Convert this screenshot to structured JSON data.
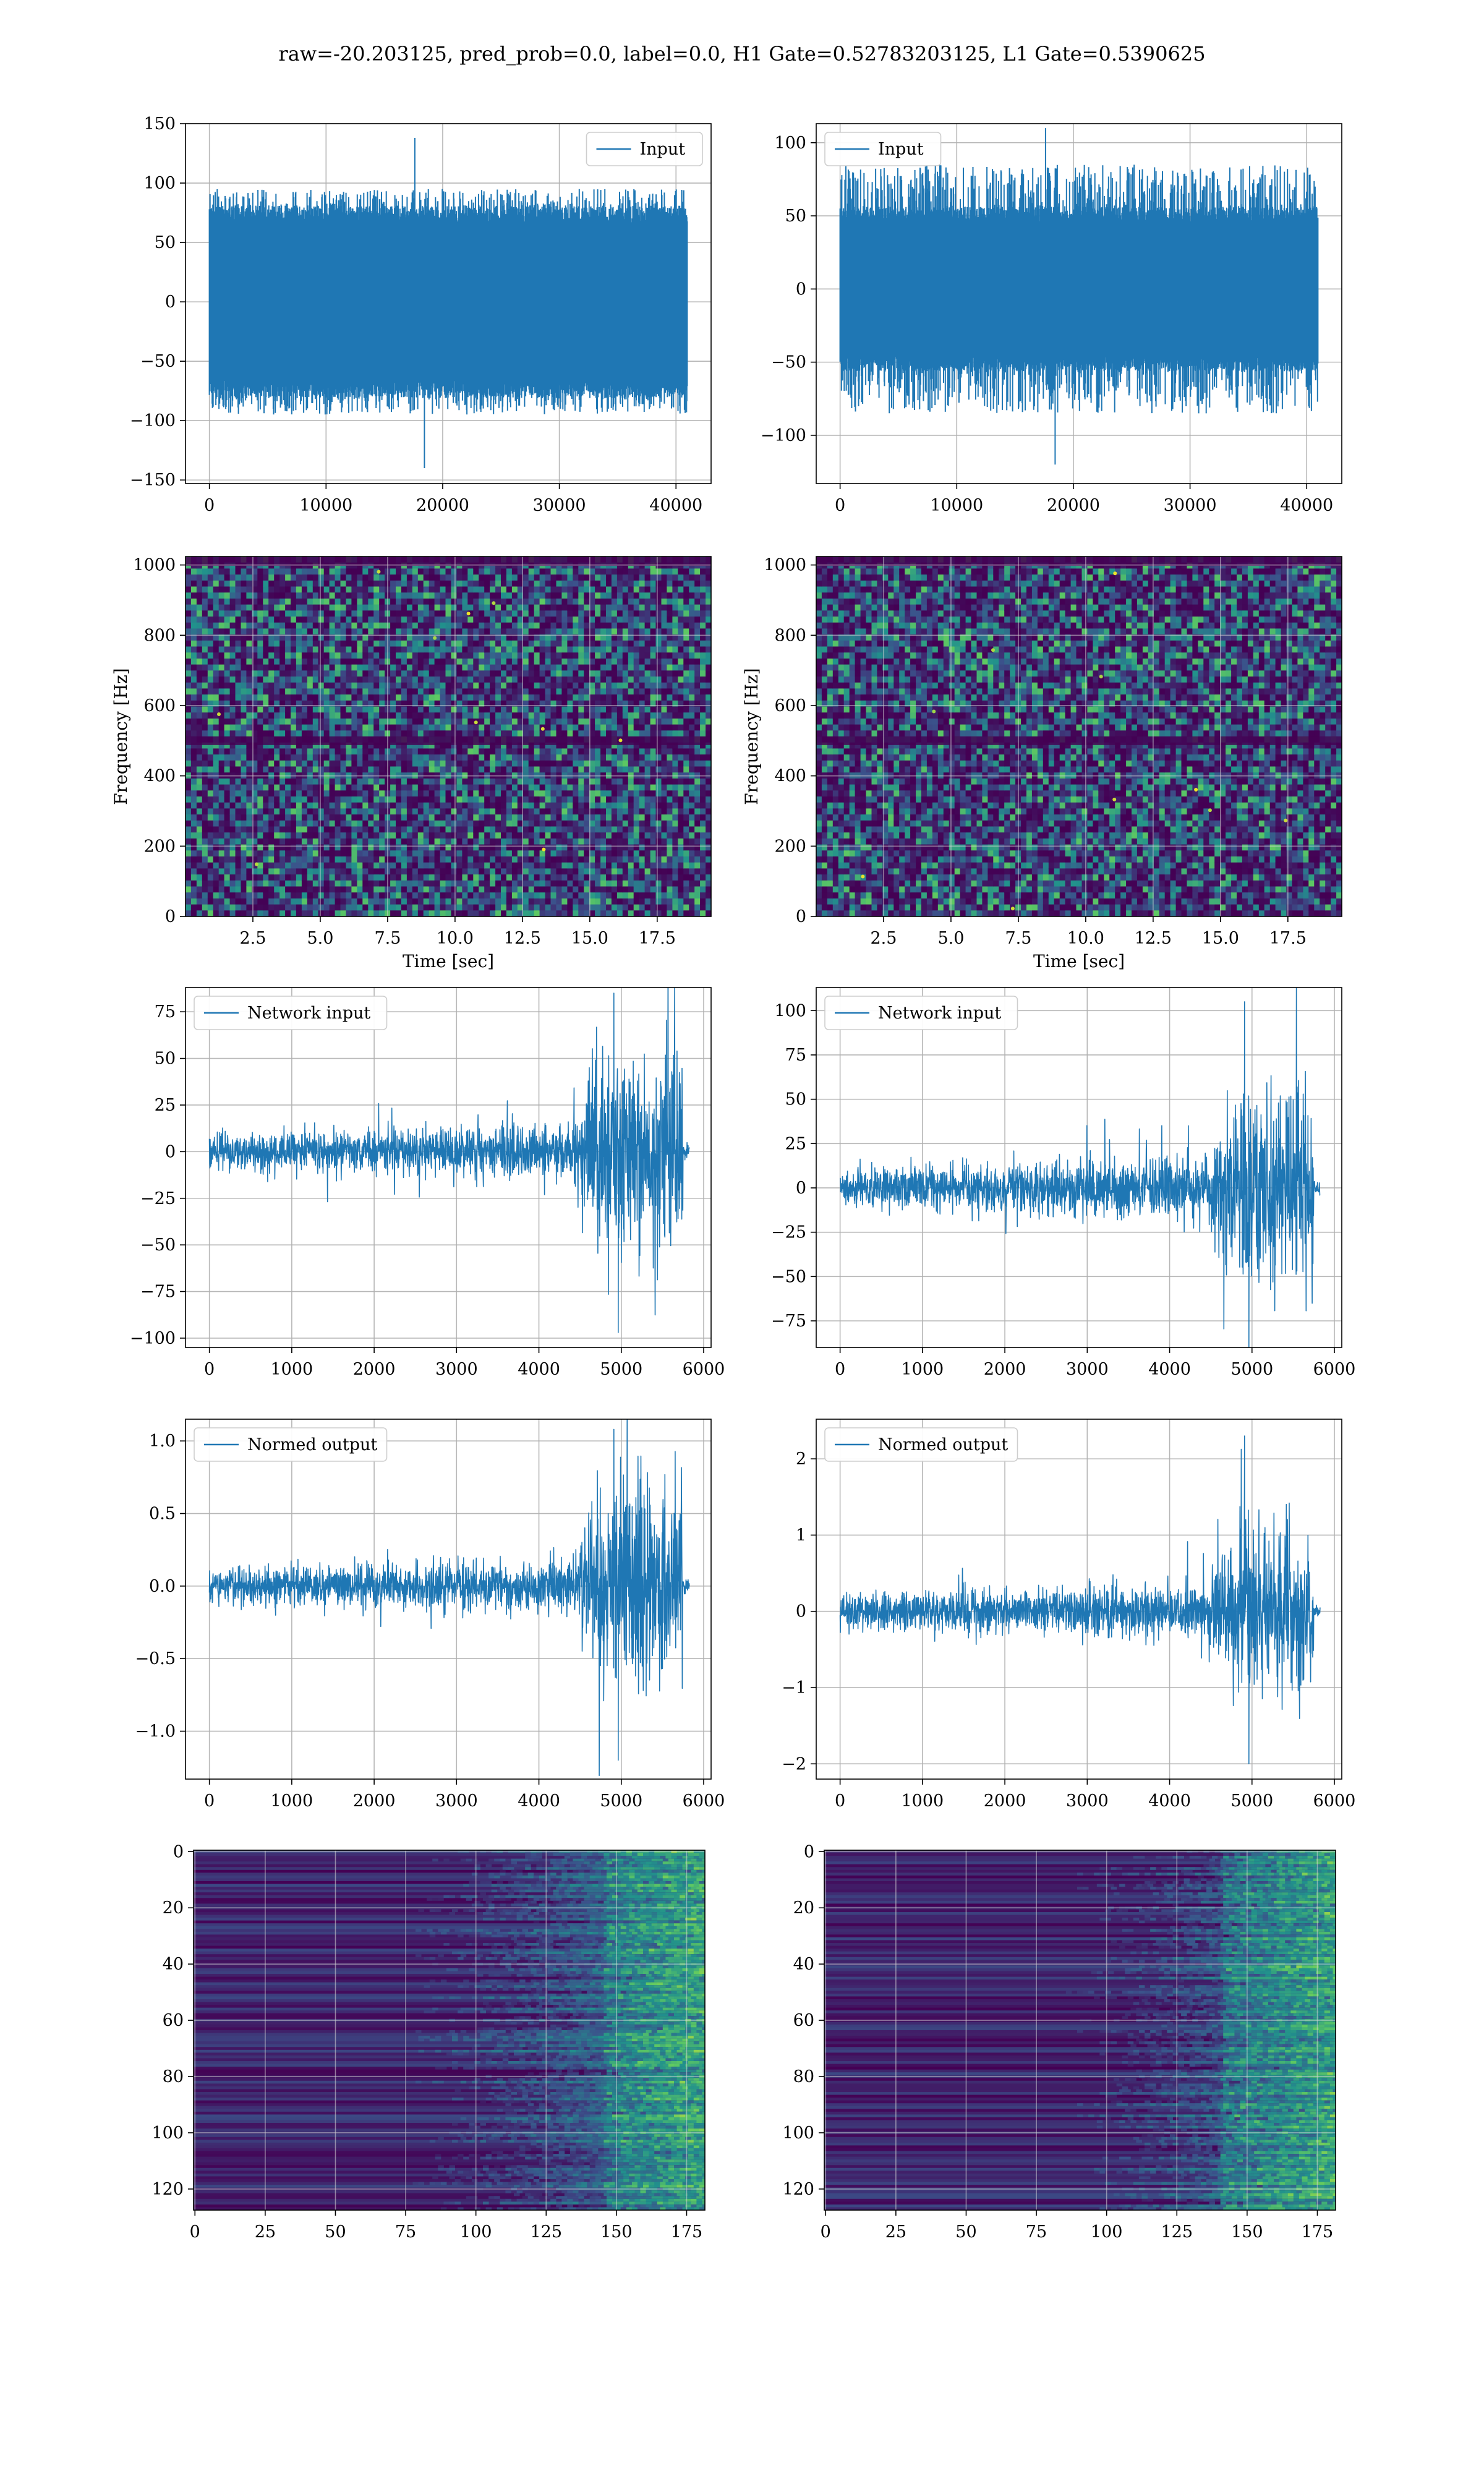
{
  "suptitle": "raw=-20.203125, pred_prob=0.0, label=0.0, H1 Gate=0.52783203125, L1 Gate=0.5390625",
  "colors": {
    "line": "#1f77b4",
    "grid": "#b0b0b0",
    "viridis_bg": "#440154"
  },
  "chart_data": [
    {
      "id": "input-h1",
      "type": "line",
      "title": "",
      "xlabel": "",
      "ylabel": "",
      "xlim": [
        -2048,
        43008
      ],
      "ylim": [
        -153,
        150
      ],
      "xticks": [
        0,
        10000,
        20000,
        30000,
        40000
      ],
      "yticks": [
        -150,
        -100,
        -50,
        0,
        50,
        100,
        150
      ],
      "legend": {
        "position": "upper right"
      },
      "series": [
        {
          "name": "Input",
          "signal": "noise",
          "x": [
            0,
            40960
          ],
          "envelope": {
            "core": 65,
            "peak_max": 138,
            "peak_min": -140,
            "typical_spike": 95
          }
        }
      ]
    },
    {
      "id": "input-l1",
      "type": "line",
      "title": "",
      "xlabel": "",
      "ylabel": "",
      "xlim": [
        -2048,
        43008
      ],
      "ylim": [
        -133,
        113
      ],
      "xticks": [
        0,
        10000,
        20000,
        30000,
        40000
      ],
      "yticks": [
        -100,
        -50,
        0,
        50,
        100
      ],
      "legend": {
        "position": "upper left"
      },
      "series": [
        {
          "name": "Input",
          "signal": "noise",
          "x": [
            0,
            40960
          ],
          "envelope": {
            "core": 45,
            "peak_max": 110,
            "peak_min": -120,
            "typical_spike": 85
          }
        }
      ]
    },
    {
      "id": "spectrogram-h1",
      "type": "heatmap",
      "colormap": "viridis",
      "xlabel": "Time [sec]",
      "ylabel": "Frequency [Hz]",
      "xlim": [
        0,
        19.5
      ],
      "ylim": [
        0,
        1024
      ],
      "xticks": [
        2.5,
        5.0,
        7.5,
        10.0,
        12.5,
        15.0,
        17.5
      ],
      "yticks": [
        0,
        200,
        400,
        600,
        800,
        1000
      ],
      "xtick_labels": [
        "2.5",
        "5.0",
        "7.5",
        "10.0",
        "12.5",
        "15.0",
        "17.5"
      ],
      "dark_bands_hz": [
        500,
        1010
      ]
    },
    {
      "id": "spectrogram-l1",
      "type": "heatmap",
      "colormap": "viridis",
      "xlabel": "Time [sec]",
      "ylabel": "Frequency [Hz]",
      "xlim": [
        0,
        19.5
      ],
      "ylim": [
        0,
        1024
      ],
      "xticks": [
        2.5,
        5.0,
        7.5,
        10.0,
        12.5,
        15.0,
        17.5
      ],
      "yticks": [
        0,
        200,
        400,
        600,
        800,
        1000
      ],
      "xtick_labels": [
        "2.5",
        "5.0",
        "7.5",
        "10.0",
        "12.5",
        "15.0",
        "17.5"
      ],
      "dark_bands_hz": [
        500,
        1010
      ]
    },
    {
      "id": "network-input-h1",
      "type": "line",
      "xlabel": "",
      "ylabel": "",
      "xlim": [
        -290,
        6090
      ],
      "ylim": [
        -105,
        88
      ],
      "xticks": [
        0,
        1000,
        2000,
        3000,
        4000,
        5000,
        6000
      ],
      "yticks": [
        -100,
        -75,
        -50,
        -25,
        0,
        25,
        50,
        75
      ],
      "legend": {
        "position": "upper left"
      },
      "series": [
        {
          "name": "Network input",
          "signal": "chirp",
          "segments": [
            {
              "x": [
                0,
                4500
              ],
              "amp_start": 9,
              "amp_end": 14
            },
            {
              "x": [
                4500,
                4700
              ],
              "amp_start": 30,
              "amp_end": 45
            },
            {
              "x": [
                4700,
                5750
              ],
              "amp_start": 50,
              "amp_end": 55
            },
            {
              "x": [
                5750,
                5830
              ],
              "amp_start": 4,
              "amp_end": 4
            }
          ],
          "peak_max": 85,
          "peak_min": -97
        }
      ]
    },
    {
      "id": "network-input-l1",
      "type": "line",
      "xlabel": "",
      "ylabel": "",
      "xlim": [
        -290,
        6090
      ],
      "ylim": [
        -90,
        113
      ],
      "xticks": [
        0,
        1000,
        2000,
        3000,
        4000,
        5000,
        6000
      ],
      "yticks": [
        -75,
        -50,
        -25,
        0,
        25,
        50,
        75,
        100
      ],
      "legend": {
        "position": "upper left"
      },
      "series": [
        {
          "name": "Network input",
          "signal": "chirp",
          "segments": [
            {
              "x": [
                0,
                4500
              ],
              "amp_start": 9,
              "amp_end": 18
            },
            {
              "x": [
                4500,
                4700
              ],
              "amp_start": 28,
              "amp_end": 40
            },
            {
              "x": [
                4700,
                5750
              ],
              "amp_start": 48,
              "amp_end": 55
            },
            {
              "x": [
                5750,
                5830
              ],
              "amp_start": 4,
              "amp_end": 4
            }
          ],
          "peak_max": 105,
          "peak_min": -90
        }
      ]
    },
    {
      "id": "normed-output-h1",
      "type": "line",
      "xlabel": "",
      "ylabel": "",
      "xlim": [
        -290,
        6090
      ],
      "ylim": [
        -1.33,
        1.15
      ],
      "xticks": [
        0,
        1000,
        2000,
        3000,
        4000,
        5000,
        6000
      ],
      "yticks": [
        -1.0,
        -0.5,
        0.0,
        0.5,
        1.0
      ],
      "ytick_labels": [
        "−1.0",
        "−0.5",
        "0.0",
        "0.5",
        "1.0"
      ],
      "legend": {
        "position": "upper left"
      },
      "series": [
        {
          "name": "Normed output",
          "signal": "chirp",
          "segments": [
            {
              "x": [
                0,
                4500
              ],
              "amp_start": 0.12,
              "amp_end": 0.17
            },
            {
              "x": [
                4500,
                4700
              ],
              "amp_start": 0.4,
              "amp_end": 0.55
            },
            {
              "x": [
                4700,
                5750
              ],
              "amp_start": 0.62,
              "amp_end": 0.7
            },
            {
              "x": [
                5750,
                5830
              ],
              "amp_start": 0.05,
              "amp_end": 0.05
            }
          ],
          "peak_max": 1.08,
          "peak_min": -1.2
        }
      ]
    },
    {
      "id": "normed-output-l1",
      "type": "line",
      "xlabel": "",
      "ylabel": "",
      "xlim": [
        -290,
        6090
      ],
      "ylim": [
        -2.2,
        2.52
      ],
      "xticks": [
        0,
        1000,
        2000,
        3000,
        4000,
        5000,
        6000
      ],
      "yticks": [
        -2,
        -1,
        0,
        1,
        2
      ],
      "ytick_labels": [
        "−2",
        "−1",
        "0",
        "1",
        "2"
      ],
      "legend": {
        "position": "upper left"
      },
      "series": [
        {
          "name": "Normed output",
          "signal": "chirp",
          "segments": [
            {
              "x": [
                0,
                4500
              ],
              "amp_start": 0.22,
              "amp_end": 0.33
            },
            {
              "x": [
                4500,
                4700
              ],
              "amp_start": 0.6,
              "amp_end": 0.8
            },
            {
              "x": [
                4700,
                5750
              ],
              "amp_start": 1.0,
              "amp_end": 1.1
            },
            {
              "x": [
                5750,
                5830
              ],
              "amp_start": 0.08,
              "amp_end": 0.08
            }
          ],
          "peak_max": 2.3,
          "peak_min": -2.0
        }
      ]
    },
    {
      "id": "feature-map-h1",
      "type": "heatmap",
      "colormap": "viridis",
      "xlabel": "",
      "ylabel": "",
      "xlim": [
        -0.5,
        181.5
      ],
      "ylim": [
        127.5,
        -0.5
      ],
      "xticks": [
        0,
        25,
        50,
        75,
        100,
        125,
        150,
        175
      ],
      "yticks": [
        0,
        20,
        40,
        60,
        80,
        100,
        120
      ],
      "rows": 128,
      "cols": 182,
      "activation_onset_col": 100,
      "strong_onset_col": 145
    },
    {
      "id": "feature-map-l1",
      "type": "heatmap",
      "colormap": "viridis",
      "xlabel": "",
      "ylabel": "",
      "xlim": [
        -0.5,
        181.5
      ],
      "ylim": [
        127.5,
        -0.5
      ],
      "xticks": [
        0,
        25,
        50,
        75,
        100,
        125,
        150,
        175
      ],
      "yticks": [
        0,
        20,
        40,
        60,
        80,
        100,
        120
      ],
      "rows": 128,
      "cols": 182,
      "activation_onset_col": 110,
      "strong_onset_col": 140
    }
  ]
}
